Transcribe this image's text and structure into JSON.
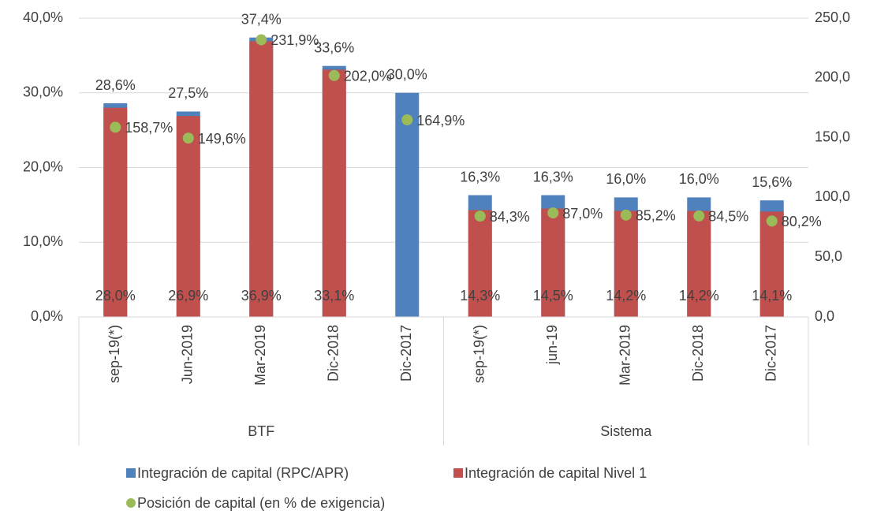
{
  "chart_data": {
    "type": "bar",
    "categories": [
      "sep-19(*)",
      "Jun-2019",
      "Mar-2019",
      "Dic-2018",
      "Dic-2017",
      "sep-19(*)",
      "jun-19",
      "Mar-2019",
      "Dic-2018",
      "Dic-2017"
    ],
    "groups": [
      {
        "name": "BTF",
        "size": 5
      },
      {
        "name": "Sistema",
        "size": 5
      }
    ],
    "series": [
      {
        "name": "Integración de capital (RPC/APR)",
        "color": "#4f81bd",
        "values": [
          28.6,
          27.5,
          37.4,
          33.6,
          30.0,
          16.3,
          16.3,
          16.0,
          16.0,
          15.6
        ],
        "value_labels": [
          "28,6%",
          "27,5%",
          "37,4%",
          "33,6%",
          "30,0%",
          "16,3%",
          "16,3%",
          "16,0%",
          "16,0%",
          "15,6%"
        ]
      },
      {
        "name": "Integración de capital Nivel 1",
        "color": "#c0504d",
        "values": [
          28.0,
          26.9,
          36.9,
          33.1,
          null,
          14.3,
          14.5,
          14.2,
          14.2,
          14.1
        ],
        "value_labels": [
          "28,0%",
          "26,9%",
          "36,9%",
          "33,1%",
          null,
          "14,3%",
          "14,5%",
          "14,2%",
          "14,2%",
          "14,1%"
        ]
      },
      {
        "name": "Posición de capital (en % de exigencia)",
        "color": "#9bbb59",
        "axis": "y2",
        "type": "scatter",
        "values": [
          158.7,
          149.6,
          231.9,
          202.0,
          164.9,
          84.3,
          87.0,
          85.2,
          84.5,
          80.2
        ],
        "value_labels": [
          "158,7%",
          "149,6%",
          "231,9%",
          "202,0%",
          "164,9%",
          "84,3%",
          "87,0%",
          "85,2%",
          "84,5%",
          "80,2%"
        ]
      }
    ],
    "ylim": [
      0,
      40
    ],
    "yticks": [
      {
        "value": 0,
        "label": "0,0%"
      },
      {
        "value": 10,
        "label": "10,0%"
      },
      {
        "value": 20,
        "label": "20,0%"
      },
      {
        "value": 30,
        "label": "30,0%"
      },
      {
        "value": 40,
        "label": "40,0%"
      }
    ],
    "y2lim": [
      0,
      250
    ],
    "y2ticks": [
      {
        "value": 0,
        "label": "0,0"
      },
      {
        "value": 50,
        "label": "50,0"
      },
      {
        "value": 100,
        "label": "100,0"
      },
      {
        "value": 150,
        "label": "150,0"
      },
      {
        "value": 200,
        "label": "200,0"
      },
      {
        "value": 250,
        "label": "250,0"
      }
    ],
    "grid": true,
    "legend": "bottom"
  }
}
